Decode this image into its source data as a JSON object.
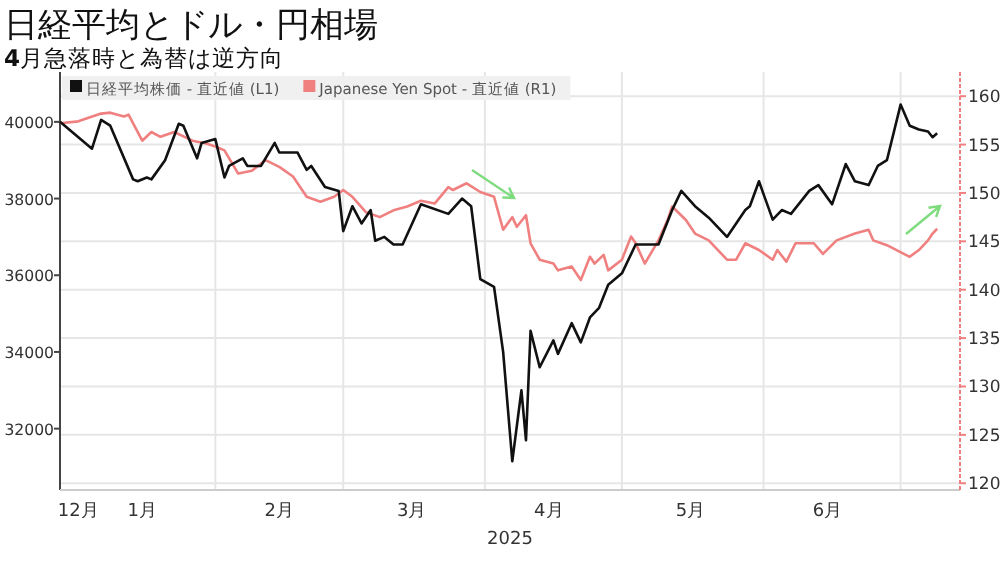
{
  "chart_data": {
    "type": "line",
    "title": "日経平均とドル・円相場",
    "subtitle": "**4**月急落時と為替は逆方向",
    "xlabel": "2025",
    "xlim": [
      "2024-12-29",
      "2025-07-14"
    ],
    "xticks": [
      {
        "value": "2025-01-02",
        "label": "12月"
      },
      {
        "value": "2025-01-16",
        "label": "1月"
      },
      {
        "value": "2025-02-01",
        "label": null
      },
      {
        "value": "2025-02-15",
        "label": "2月"
      },
      {
        "value": "2025-03-01",
        "label": null
      },
      {
        "value": "2025-03-16",
        "label": "3月"
      },
      {
        "value": "2025-04-01",
        "label": null
      },
      {
        "value": "2025-04-15",
        "label": "4月"
      },
      {
        "value": "2025-05-01",
        "label": null
      },
      {
        "value": "2025-05-16",
        "label": "5月"
      },
      {
        "value": "2025-06-01",
        "label": null
      },
      {
        "value": "2025-06-15",
        "label": "6月"
      },
      {
        "value": "2025-07-01",
        "label": null
      }
    ],
    "ylim": [
      30400,
      41300
    ],
    "yticks": [
      32000,
      34000,
      36000,
      38000,
      40000
    ],
    "y2lim": [
      119.3,
      162.5
    ],
    "y2ticks": [
      120,
      125,
      130,
      135,
      140,
      145,
      150,
      155,
      160
    ],
    "grid": true,
    "legend": "top left",
    "series": [
      {
        "name": "日経平均株価 - 直近値 (L1)",
        "color": "#111111",
        "x": [
          "2024-12-29",
          "2025-01-05",
          "2025-01-07",
          "2025-01-09",
          "2025-01-14",
          "2025-01-15",
          "2025-01-17",
          "2025-01-18",
          "2025-01-21",
          "2025-01-24",
          "2025-01-25",
          "2025-01-28",
          "2025-01-29",
          "2025-02-01",
          "2025-02-03",
          "2025-02-04",
          "2025-02-07",
          "2025-02-08",
          "2025-02-11",
          "2025-02-14",
          "2025-02-15",
          "2025-02-19",
          "2025-02-21",
          "2025-02-22",
          "2025-02-25",
          "2025-02-28",
          "2025-03-01",
          "2025-03-03",
          "2025-03-05",
          "2025-03-07",
          "2025-03-08",
          "2025-03-10",
          "2025-03-12",
          "2025-03-14",
          "2025-03-18",
          "2025-03-24",
          "2025-03-27",
          "2025-03-29",
          "2025-03-31",
          "2025-04-03",
          "2025-04-05",
          "2025-04-07",
          "2025-04-09",
          "2025-04-10",
          "2025-04-11",
          "2025-04-13",
          "2025-04-16",
          "2025-04-17",
          "2025-04-20",
          "2025-04-22",
          "2025-04-24",
          "2025-04-26",
          "2025-04-28",
          "2025-05-01",
          "2025-05-04",
          "2025-05-09",
          "2025-05-12",
          "2025-05-14",
          "2025-05-17",
          "2025-05-20",
          "2025-05-24",
          "2025-05-28",
          "2025-05-29",
          "2025-05-31",
          "2025-06-03",
          "2025-06-05",
          "2025-06-07",
          "2025-06-11",
          "2025-06-13",
          "2025-06-16",
          "2025-06-19",
          "2025-06-21",
          "2025-06-24",
          "2025-06-26",
          "2025-06-28",
          "2025-07-01",
          "2025-07-03",
          "2025-07-05",
          "2025-07-07",
          "2025-07-08",
          "2025-07-09"
        ],
        "values": [
          40000,
          39300,
          40050,
          39900,
          38500,
          38450,
          38550,
          38500,
          39000,
          39950,
          39900,
          39050,
          39450,
          39550,
          38550,
          38850,
          39050,
          38850,
          38850,
          39450,
          39200,
          39200,
          38750,
          38850,
          38300,
          38200,
          37150,
          37800,
          37350,
          37700,
          36900,
          37000,
          36800,
          36800,
          37850,
          37600,
          38000,
          37800,
          35900,
          35700,
          34000,
          31150,
          33000,
          31700,
          34550,
          33600,
          34300,
          33950,
          34750,
          34250,
          34900,
          35150,
          35750,
          36050,
          36800,
          36800,
          37700,
          38200,
          37800,
          37500,
          37000,
          37700,
          37800,
          38450,
          37450,
          37700,
          37600,
          38200,
          38350,
          37850,
          38900,
          38450,
          38350,
          38850,
          39000,
          40450,
          39900,
          39800,
          39750,
          39600,
          39700
        ]
      },
      {
        "name": "Japanese Yen Spot - 直近値 (R1)",
        "color": "#f08080",
        "axis": "y2",
        "x": [
          "2024-12-29",
          "2025-01-02",
          "2025-01-07",
          "2025-01-09",
          "2025-01-12",
          "2025-01-13",
          "2025-01-16",
          "2025-01-18",
          "2025-01-20",
          "2025-01-23",
          "2025-01-27",
          "2025-01-30",
          "2025-02-01",
          "2025-02-03",
          "2025-02-06",
          "2025-02-09",
          "2025-02-12",
          "2025-02-15",
          "2025-02-18",
          "2025-02-21",
          "2025-02-24",
          "2025-02-27",
          "2025-03-01",
          "2025-03-03",
          "2025-03-06",
          "2025-03-09",
          "2025-03-12",
          "2025-03-15",
          "2025-03-18",
          "2025-03-21",
          "2025-03-24",
          "2025-03-25",
          "2025-03-28",
          "2025-03-31",
          "2025-04-03",
          "2025-04-05",
          "2025-04-07",
          "2025-04-08",
          "2025-04-10",
          "2025-04-11",
          "2025-04-13",
          "2025-04-16",
          "2025-04-17",
          "2025-04-20",
          "2025-04-22",
          "2025-04-24",
          "2025-04-25",
          "2025-04-27",
          "2025-04-28",
          "2025-05-01",
          "2025-05-03",
          "2025-05-04",
          "2025-05-06",
          "2025-05-09",
          "2025-05-11",
          "2025-05-12",
          "2025-05-15",
          "2025-05-17",
          "2025-05-20",
          "2025-05-24",
          "2025-05-26",
          "2025-05-28",
          "2025-05-31",
          "2025-06-03",
          "2025-06-04",
          "2025-06-06",
          "2025-06-08",
          "2025-06-12",
          "2025-06-14",
          "2025-06-17",
          "2025-06-21",
          "2025-06-24",
          "2025-06-25",
          "2025-06-28",
          "2025-07-03",
          "2025-07-05",
          "2025-07-07",
          "2025-07-08",
          "2025-07-09"
        ],
        "values": [
          157.2,
          157.4,
          158.2,
          158.3,
          157.9,
          158.1,
          155.4,
          156.3,
          155.8,
          156.3,
          155.4,
          155.1,
          154.8,
          154.4,
          152.0,
          152.3,
          153.4,
          152.7,
          151.7,
          149.6,
          149.1,
          149.6,
          150.3,
          149.6,
          148.0,
          147.5,
          148.2,
          148.6,
          149.2,
          148.9,
          150.6,
          150.3,
          151.0,
          150.1,
          149.6,
          146.2,
          147.5,
          146.5,
          147.7,
          144.8,
          143.1,
          142.7,
          142.0,
          142.4,
          141.0,
          143.4,
          142.7,
          143.6,
          142.0,
          143.1,
          145.5,
          144.8,
          142.7,
          145.1,
          147.2,
          148.6,
          147.2,
          145.8,
          145.1,
          143.1,
          143.1,
          144.8,
          144.1,
          143.1,
          144.1,
          142.9,
          144.8,
          144.8,
          143.7,
          145.1,
          145.8,
          146.2,
          145.1,
          144.6,
          143.4,
          144.1,
          145.1,
          145.8,
          146.3
        ]
      }
    ]
  }
}
